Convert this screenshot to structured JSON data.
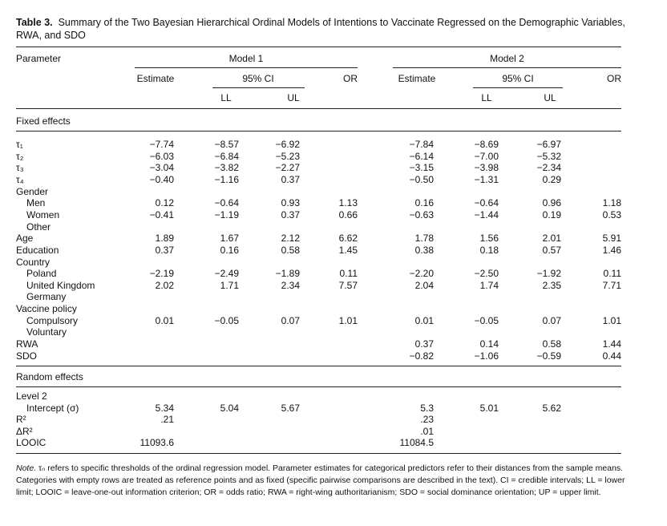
{
  "title_label": "Table 3.",
  "title": "Summary of the Two Bayesian Hierarchical Ordinal Models of Intentions to Vaccinate Regressed on the Demographic Variables, RWA, and SDO",
  "header": {
    "parameter": "Parameter",
    "models": [
      {
        "name": "Model 1",
        "estimate": "Estimate",
        "ci": "95% CI",
        "ll": "LL",
        "ul": "UL",
        "or": "OR"
      },
      {
        "name": "Model 2",
        "estimate": "Estimate",
        "ci": "95% CI",
        "ll": "LL",
        "ul": "UL",
        "or": "OR"
      }
    ]
  },
  "sections": [
    {
      "title": "Fixed effects",
      "rows": [
        {
          "label": "τ₁",
          "values": [
            "−7.74",
            "−8.57",
            "−6.92",
            null,
            "−7.84",
            "−8.69",
            "−6.97",
            null
          ]
        },
        {
          "label": "τ₂",
          "values": [
            "−6.03",
            "−6.84",
            "−5.23",
            null,
            "−6.14",
            "−7.00",
            "−5.32",
            null
          ]
        },
        {
          "label": "τ₃",
          "values": [
            "−3.04",
            "−3.82",
            "−2.27",
            null,
            "−3.15",
            "−3.98",
            "−2.34",
            null
          ]
        },
        {
          "label": "τ₄",
          "values": [
            "−0.40",
            "−1.16",
            "0.37",
            null,
            "−0.50",
            "−1.31",
            "0.29",
            null
          ]
        },
        {
          "label": "Gender"
        },
        {
          "label": "Men",
          "indent": true,
          "values": [
            "0.12",
            "−0.64",
            "0.93",
            "1.13",
            "0.16",
            "−0.64",
            "0.96",
            "1.18"
          ]
        },
        {
          "label": "Women",
          "indent": true,
          "values": [
            "−0.41",
            "−1.19",
            "0.37",
            "0.66",
            "−0.63",
            "−1.44",
            "0.19",
            "0.53"
          ]
        },
        {
          "label": "Other",
          "indent": true
        },
        {
          "label": "Age",
          "values": [
            "1.89",
            "1.67",
            "2.12",
            "6.62",
            "1.78",
            "1.56",
            "2.01",
            "5.91"
          ]
        },
        {
          "label": "Education",
          "values": [
            "0.37",
            "0.16",
            "0.58",
            "1.45",
            "0.38",
            "0.18",
            "0.57",
            "1.46"
          ]
        },
        {
          "label": "Country"
        },
        {
          "label": "Poland",
          "indent": true,
          "values": [
            "−2.19",
            "−2.49",
            "−1.89",
            "0.11",
            "−2.20",
            "−2.50",
            "−1.92",
            "0.11"
          ]
        },
        {
          "label": "United Kingdom",
          "indent": true,
          "values": [
            "2.02",
            "1.71",
            "2.34",
            "7.57",
            "2.04",
            "1.74",
            "2.35",
            "7.71"
          ]
        },
        {
          "label": "Germany",
          "indent": true
        },
        {
          "label": "Vaccine policy"
        },
        {
          "label": "Compulsory",
          "indent": true,
          "values": [
            "0.01",
            "−0.05",
            "0.07",
            "1.01",
            "0.01",
            "−0.05",
            "0.07",
            "1.01"
          ]
        },
        {
          "label": "Voluntary",
          "indent": true
        },
        {
          "label": "RWA",
          "values": [
            null,
            null,
            null,
            null,
            "0.37",
            "0.14",
            "0.58",
            "1.44"
          ]
        },
        {
          "label": "SDO",
          "values": [
            null,
            null,
            null,
            null,
            "−0.82",
            "−1.06",
            "−0.59",
            "0.44"
          ]
        }
      ]
    },
    {
      "title": "Random effects",
      "rows": [
        {
          "label": "Level 2"
        },
        {
          "label": "Intercept (σ)",
          "indent": true,
          "values": [
            "5.34",
            "5.04",
            "5.67",
            null,
            "5.3",
            "5.01",
            "5.62",
            null
          ]
        },
        {
          "label": "R²",
          "values": [
            ".21",
            null,
            null,
            null,
            ".23",
            null,
            null,
            null
          ]
        },
        {
          "label": "ΔR²",
          "values": [
            null,
            null,
            null,
            null,
            ".01",
            null,
            null,
            null
          ]
        },
        {
          "label": "LOOIC",
          "values": [
            "11093.6",
            null,
            null,
            null,
            "11084.5",
            null,
            null,
            null
          ]
        }
      ]
    }
  ],
  "note": {
    "label": "Note.",
    "text": "τₙ refers to specific thresholds of the ordinal regression model. Parameter estimates for categorical predictors refer to their distances from the sample means. Categories with empty rows are treated as reference points and as fixed (specific pairwise comparisons are described in the text). CI = credible intervals; LL = lower limit; LOOIC = leave-one-out information criterion; OR = odds ratio; RWA = right-wing authoritarianism; SDO = social dominance orientation; UP = upper limit."
  }
}
